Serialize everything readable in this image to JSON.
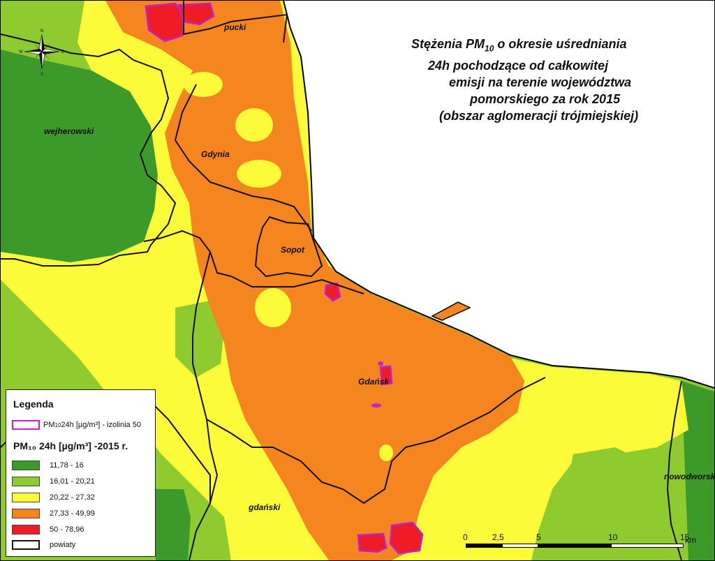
{
  "title": {
    "line1_pre": "Stężenia PM",
    "line1_sub": "10",
    "line1_post": " o okresie uśredniania",
    "line2": "24h  pochodzące od całkowitej",
    "line3": "emisji  na terenie województwa",
    "line4": "pomorskiego za rok 2015",
    "line5": "(obszar aglomeracji  trójmiejskiej)"
  },
  "places": {
    "pucki": "pucki",
    "wejherowski": "wejherowski",
    "gdynia": "Gdynia",
    "sopot": "Sopot",
    "gdansk": "Gdańsk",
    "gdanski": "gdański",
    "nowodworski": "nowodworski"
  },
  "legend": {
    "title": "Legenda",
    "isoline_label_pre": "PM",
    "isoline_label_sub": "10",
    "isoline_label_post": "  24h  [µg/m³]  - izolinia 50",
    "pm_title": "PM₁₀  24h  [µg/m³] -2015 r.",
    "classes": [
      {
        "label": "11,78 - 16",
        "color": "#3c9a2a"
      },
      {
        "label": "16,01 - 20,21",
        "color": "#8fca2e"
      },
      {
        "label": "20,22 - 27,32",
        "color": "#fbfb3a"
      },
      {
        "label": "27,33 - 49,99",
        "color": "#f5851f"
      },
      {
        "label": "50 - 78,96",
        "color": "#ee1c24"
      }
    ],
    "isoline_color": "#c020d0",
    "powiaty_label": "powiaty"
  },
  "compass": {
    "n": "N",
    "s": "S",
    "e": "E",
    "w": "W"
  },
  "scale": {
    "labels": [
      "0",
      "2,5",
      "5",
      "10",
      "15"
    ],
    "unit": "km"
  }
}
